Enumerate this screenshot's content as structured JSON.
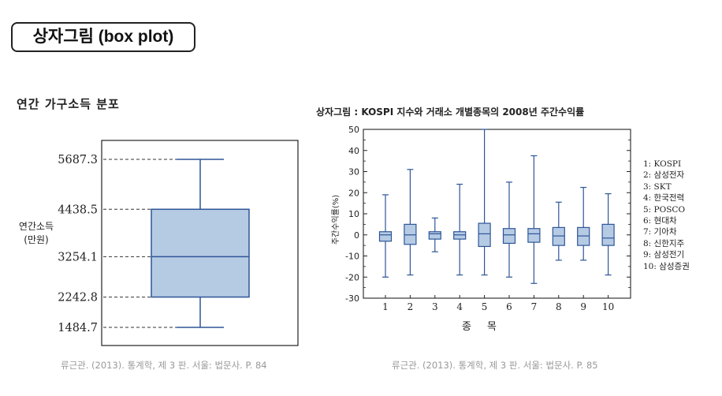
{
  "slide": {
    "title": "상자그림 (box plot)"
  },
  "left_panel": {
    "heading": "연간 가구소득 분포",
    "ylabel_line1": "연간소득",
    "ylabel_line2": "(만원)",
    "citation": "류근관. (2013). 통계학, 제 3 판. 서울: 법문사. P. 84"
  },
  "right_panel": {
    "heading": "상자그림 : KOSPI 지수와 거래소 개별종목의 2008년 주간수익률",
    "ylabel": "주간수익률(%)",
    "xlabel": "종 목",
    "citation": "류근관. (2013). 통계학, 제 3 판. 서울: 법문사. P. 85",
    "legend": [
      "1: KOSPI",
      "2: 삼성전자",
      "3: SKT",
      "4: 한국전력",
      "5: POSCO",
      "6: 현대차",
      "7: 기아차",
      "8: 신한지주",
      "9: 삼성전기",
      "10: 삼성증권"
    ]
  },
  "colors": {
    "box_fill": "#b5cbe4",
    "box_stroke": "#2e5597",
    "axis": "#222222"
  },
  "chart_data": [
    {
      "type": "box",
      "title": "연간 가구소득 분포",
      "ylabel": "연간소득 (만원)",
      "tick_labels": [
        "5687.3",
        "4438.5",
        "3254.1",
        "2242.8",
        "1484.7"
      ],
      "boxes": [
        {
          "min": 1484.7,
          "q1": 2242.8,
          "median": 3254.1,
          "q3": 4438.5,
          "max": 5687.3
        }
      ]
    },
    {
      "type": "box",
      "title": "상자그림 : KOSPI 지수와 거래소 개별종목의 2008년 주간수익률",
      "xlabel": "종 목",
      "ylabel": "주간수익률(%)",
      "ylim": [
        -30,
        50
      ],
      "yticks": [
        50,
        40,
        30,
        20,
        10,
        0,
        -10,
        -20,
        -30
      ],
      "categories": [
        "1",
        "2",
        "3",
        "4",
        "5",
        "6",
        "7",
        "8",
        "9",
        "10"
      ],
      "boxes": [
        {
          "min": -20,
          "q1": -3,
          "median": 0,
          "q3": 1.5,
          "max": 19
        },
        {
          "min": -19,
          "q1": -4.5,
          "median": 0,
          "q3": 5,
          "max": 31
        },
        {
          "min": -8,
          "q1": -2,
          "median": 0.5,
          "q3": 1.5,
          "max": 8
        },
        {
          "min": -19,
          "q1": -2,
          "median": 0,
          "q3": 1.5,
          "max": 24
        },
        {
          "min": -19,
          "q1": -5.5,
          "median": 0.5,
          "q3": 5.5,
          "max": 50
        },
        {
          "min": -20,
          "q1": -4,
          "median": 0,
          "q3": 3,
          "max": 25
        },
        {
          "min": -23,
          "q1": -3.5,
          "median": 0.5,
          "q3": 3,
          "max": 37.5
        },
        {
          "min": -12,
          "q1": -5,
          "median": -0.5,
          "q3": 3.5,
          "max": 15.5
        },
        {
          "min": -12,
          "q1": -5,
          "median": -0.5,
          "q3": 3.5,
          "max": 22.5
        },
        {
          "min": -19,
          "q1": -5,
          "median": -1.5,
          "q3": 5,
          "max": 19.5
        }
      ]
    }
  ]
}
